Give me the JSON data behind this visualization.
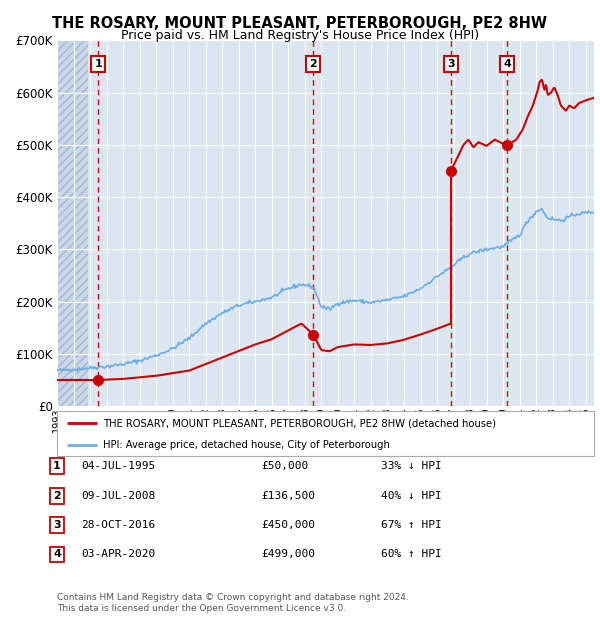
{
  "title": "THE ROSARY, MOUNT PLEASANT, PETERBOROUGH, PE2 8HW",
  "subtitle": "Price paid vs. HM Land Registry's House Price Index (HPI)",
  "sale_dates_num": [
    1995.51,
    2008.52,
    2016.83,
    2020.26
  ],
  "sale_prices": [
    50000,
    136500,
    450000,
    499000
  ],
  "sale_labels": [
    "1",
    "2",
    "3",
    "4"
  ],
  "sale_label_dates": [
    "04-JUL-1995",
    "09-JUL-2008",
    "28-OCT-2016",
    "03-APR-2020"
  ],
  "sale_label_prices": [
    "£50,000",
    "£136,500",
    "£450,000",
    "£499,000"
  ],
  "sale_label_hpi": [
    "33% ↓ HPI",
    "40% ↓ HPI",
    "67% ↑ HPI",
    "60% ↑ HPI"
  ],
  "red_line_color": "#cc0000",
  "blue_line_color": "#6aaee8",
  "dot_color": "#cc0000",
  "dashed_red_color": "#dd0000",
  "bg_main": "#dce6f1",
  "bg_hatch": "#c5d5e8",
  "ylim": [
    0,
    700000
  ],
  "xlim_start": 1993.0,
  "xlim_end": 2025.5,
  "legend_line1": "THE ROSARY, MOUNT PLEASANT, PETERBOROUGH, PE2 8HW (detached house)",
  "legend_line2": "HPI: Average price, detached house, City of Peterborough",
  "footer": "Contains HM Land Registry data © Crown copyright and database right 2024.\nThis data is licensed under the Open Government Licence v3.0."
}
